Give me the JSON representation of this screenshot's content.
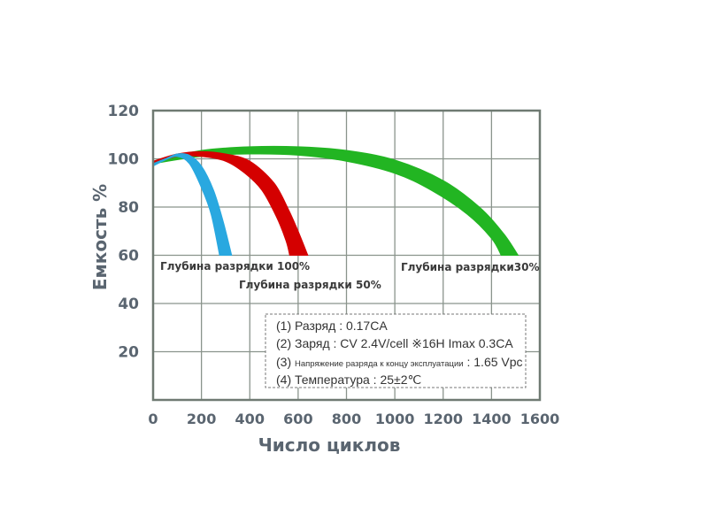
{
  "chart_data": {
    "type": "area",
    "title": "",
    "xlabel": "Число циклов",
    "ylabel": "Емкость %",
    "xlim": [
      0,
      1600
    ],
    "ylim": [
      0,
      120
    ],
    "x_ticks": [
      "0",
      "200",
      "400",
      "600",
      "800",
      "1000",
      "1200",
      "1400",
      "1600"
    ],
    "y_ticks": [
      "20",
      "40",
      "60",
      "80",
      "100",
      "120"
    ],
    "grid": true,
    "series": [
      {
        "name": "Глубина разрядки 100%",
        "color": "#29a8e0",
        "upper": [
          [
            0,
            98
          ],
          [
            50,
            100
          ],
          [
            100,
            102
          ],
          [
            150,
            101.5
          ],
          [
            200,
            97
          ],
          [
            250,
            87
          ],
          [
            290,
            74
          ],
          [
            325,
            60
          ]
        ],
        "lower": [
          [
            0,
            97
          ],
          [
            50,
            99.5
          ],
          [
            100,
            101
          ],
          [
            150,
            98
          ],
          [
            200,
            88
          ],
          [
            240,
            77
          ],
          [
            275,
            60
          ]
        ]
      },
      {
        "name": "Глубина разрядки 50%",
        "color": "#d40000",
        "upper": [
          [
            0,
            99
          ],
          [
            100,
            102
          ],
          [
            200,
            103
          ],
          [
            300,
            102
          ],
          [
            400,
            99
          ],
          [
            500,
            90
          ],
          [
            560,
            79
          ],
          [
            600,
            70
          ],
          [
            640,
            60
          ]
        ],
        "lower": [
          [
            0,
            98
          ],
          [
            100,
            101
          ],
          [
            200,
            101
          ],
          [
            300,
            99
          ],
          [
            380,
            94
          ],
          [
            450,
            87
          ],
          [
            510,
            76
          ],
          [
            550,
            66
          ],
          [
            565,
            60
          ]
        ]
      },
      {
        "name": "Глубина разрядки30%",
        "color": "#22b522",
        "upper": [
          [
            0,
            99
          ],
          [
            200,
            103.5
          ],
          [
            400,
            105
          ],
          [
            600,
            105
          ],
          [
            800,
            103.5
          ],
          [
            1000,
            99.5
          ],
          [
            1200,
            91
          ],
          [
            1350,
            80
          ],
          [
            1450,
            69
          ],
          [
            1510,
            60
          ]
        ],
        "lower": [
          [
            0,
            98
          ],
          [
            200,
            101
          ],
          [
            400,
            102
          ],
          [
            600,
            101.5
          ],
          [
            800,
            99
          ],
          [
            1000,
            94
          ],
          [
            1150,
            87
          ],
          [
            1300,
            77
          ],
          [
            1400,
            67
          ],
          [
            1440,
            60
          ]
        ]
      }
    ],
    "annotations": {
      "label_100": "Глубина разрядки 100%",
      "label_50": "Глубина разрядки 50%",
      "label_30": "Глубина разрядки30%"
    },
    "notes": {
      "line1": "(1) Разряд : 0.17CA",
      "line2": "(2) Заряд : CV 2.4V/cell  ※16H Imax 0.3CA",
      "line3_prefix": "(3) ",
      "line3_small": "Напряжение разряда к концу эксплуатации",
      "line3_suffix": " : 1.65 Vpc",
      "line4": "(4) Температура : 25±2℃"
    }
  },
  "colors": {
    "frame": "#6f7a72",
    "grid": "#8a948c",
    "text": "#5a6570"
  }
}
